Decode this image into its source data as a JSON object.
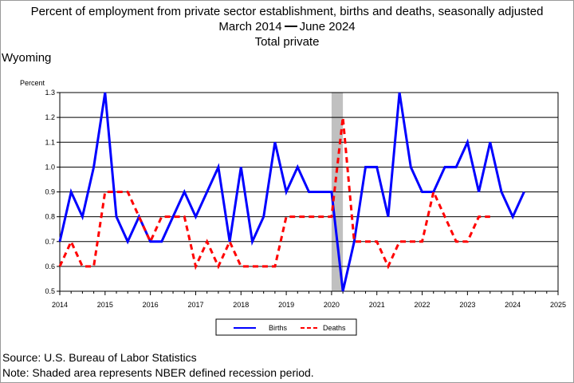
{
  "titles": {
    "line1": "Percent of employment from private sector establishment, births and deaths, seasonally adjusted",
    "range_start": "March 2014",
    "range_end": "June 2024",
    "line3": "Total private"
  },
  "state": "Wyoming",
  "footer": {
    "source": "Source: U.S. Bureau of Labor Statistics",
    "note": "Note: Shaded area represents NBER defined recession period."
  },
  "chart_data": {
    "type": "line",
    "ylabel": "Percent",
    "xlabel": "",
    "xlim": [
      2014,
      2025
    ],
    "ylim": [
      0.5,
      1.3
    ],
    "y_ticks": [
      "0.5",
      "0.6",
      "0.7",
      "0.8",
      "0.9",
      "1.0",
      "1.1",
      "1.2",
      "1.3"
    ],
    "x_ticks": [
      "2014",
      "2015",
      "2016",
      "2017",
      "2018",
      "2019",
      "2020",
      "2021",
      "2022",
      "2023",
      "2024",
      "2025"
    ],
    "grid": "horizontal",
    "legend_position": "bottom",
    "recession": {
      "start": 2020.0,
      "end": 2020.25
    },
    "colors": {
      "births": "#0000ff",
      "deaths": "#ff0000",
      "recession": "#c0c0c0"
    },
    "series": [
      {
        "name": "Births",
        "style": "solid",
        "points": [
          [
            2014.0,
            0.7
          ],
          [
            2014.25,
            0.9
          ],
          [
            2014.5,
            0.8
          ],
          [
            2014.75,
            1.0
          ],
          [
            2015.0,
            1.3
          ],
          [
            2015.25,
            0.8
          ],
          [
            2015.5,
            0.7
          ],
          [
            2015.75,
            0.8
          ],
          [
            2016.0,
            0.7
          ],
          [
            2016.25,
            0.7
          ],
          [
            2016.5,
            0.8
          ],
          [
            2016.75,
            0.9
          ],
          [
            2017.0,
            0.8
          ],
          [
            2017.25,
            0.9
          ],
          [
            2017.5,
            1.0
          ],
          [
            2017.75,
            0.7
          ],
          [
            2018.0,
            1.0
          ],
          [
            2018.25,
            0.7
          ],
          [
            2018.5,
            0.8
          ],
          [
            2018.75,
            1.1
          ],
          [
            2019.0,
            0.9
          ],
          [
            2019.25,
            1.0
          ],
          [
            2019.5,
            0.9
          ],
          [
            2019.75,
            0.9
          ],
          [
            2020.0,
            0.9
          ],
          [
            2020.25,
            0.5
          ],
          [
            2020.5,
            0.7
          ],
          [
            2020.75,
            1.0
          ],
          [
            2021.0,
            1.0
          ],
          [
            2021.25,
            0.8
          ],
          [
            2021.5,
            1.3
          ],
          [
            2021.75,
            1.0
          ],
          [
            2022.0,
            0.9
          ],
          [
            2022.25,
            0.9
          ],
          [
            2022.5,
            1.0
          ],
          [
            2022.75,
            1.0
          ],
          [
            2023.0,
            1.1
          ],
          [
            2023.25,
            0.9
          ],
          [
            2023.5,
            1.1
          ],
          [
            2023.75,
            0.9
          ],
          [
            2024.0,
            0.8
          ],
          [
            2024.25,
            0.9
          ]
        ]
      },
      {
        "name": "Deaths",
        "style": "dashed",
        "points": [
          [
            2014.0,
            0.6
          ],
          [
            2014.25,
            0.7
          ],
          [
            2014.5,
            0.6
          ],
          [
            2014.75,
            0.6
          ],
          [
            2015.0,
            0.9
          ],
          [
            2015.25,
            0.9
          ],
          [
            2015.5,
            0.9
          ],
          [
            2015.75,
            0.8
          ],
          [
            2016.0,
            0.7
          ],
          [
            2016.25,
            0.8
          ],
          [
            2016.5,
            0.8
          ],
          [
            2016.75,
            0.8
          ],
          [
            2017.0,
            0.6
          ],
          [
            2017.25,
            0.7
          ],
          [
            2017.5,
            0.6
          ],
          [
            2017.75,
            0.7
          ],
          [
            2018.0,
            0.6
          ],
          [
            2018.25,
            0.6
          ],
          [
            2018.5,
            0.6
          ],
          [
            2018.75,
            0.6
          ],
          [
            2019.0,
            0.8
          ],
          [
            2019.25,
            0.8
          ],
          [
            2019.5,
            0.8
          ],
          [
            2019.75,
            0.8
          ],
          [
            2020.0,
            0.8
          ],
          [
            2020.25,
            1.2
          ],
          [
            2020.5,
            0.7
          ],
          [
            2020.75,
            0.7
          ],
          [
            2021.0,
            0.7
          ],
          [
            2021.25,
            0.6
          ],
          [
            2021.5,
            0.7
          ],
          [
            2021.75,
            0.7
          ],
          [
            2022.0,
            0.7
          ],
          [
            2022.25,
            0.9
          ],
          [
            2022.5,
            0.8
          ],
          [
            2022.75,
            0.7
          ],
          [
            2023.0,
            0.7
          ],
          [
            2023.25,
            0.8
          ],
          [
            2023.5,
            0.8
          ]
        ]
      }
    ]
  }
}
